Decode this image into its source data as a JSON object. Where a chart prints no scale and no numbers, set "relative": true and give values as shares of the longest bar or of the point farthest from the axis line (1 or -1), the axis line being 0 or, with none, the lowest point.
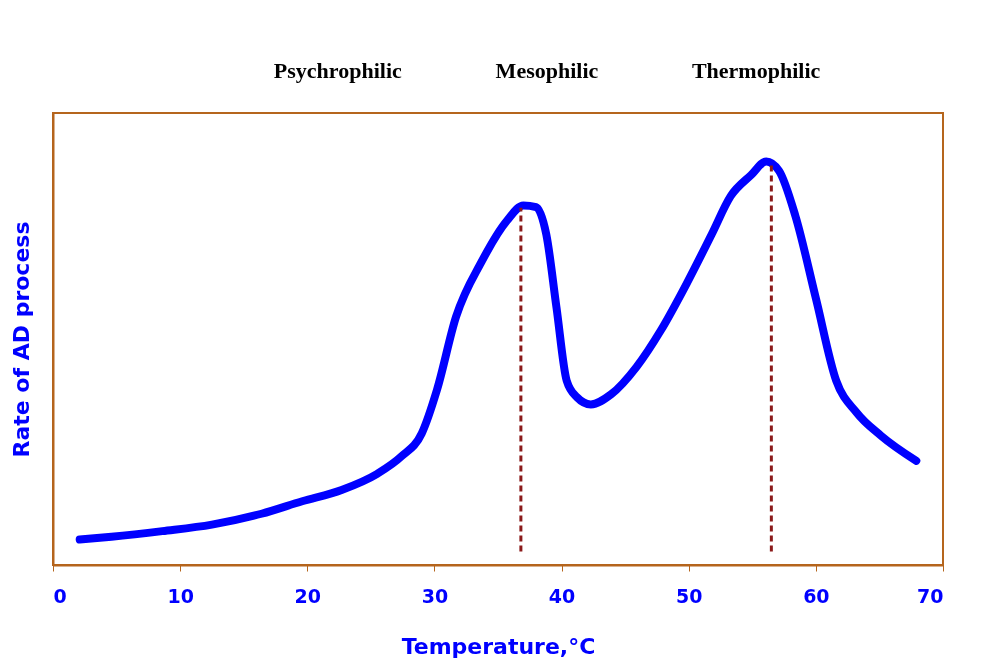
{
  "chart_data": {
    "type": "line",
    "relative": true,
    "xlabel": "Temperature,°C",
    "ylabel": "Rate of AD process",
    "xlim": [
      0,
      70
    ],
    "xticks": [
      0,
      10,
      20,
      30,
      40,
      50,
      60,
      70
    ],
    "tick_labels": "x",
    "grid": false,
    "marker": "none",
    "line_style": "solid",
    "x": [
      2.1,
      4.6,
      8.6,
      12.5,
      16.4,
      19.6,
      22.7,
      25.5,
      27.4,
      29.0,
      30.2,
      31.7,
      33.7,
      35.7,
      37.0,
      38.0,
      38.8,
      39.6,
      40.4,
      41.2,
      42.3,
      43.9,
      45.9,
      47.8,
      49.8,
      51.8,
      53.3,
      54.9,
      56.1,
      57.1,
      58.4,
      60.0,
      61.6,
      63.2,
      65.1,
      67.9
    ],
    "series": [
      {
        "color": "#0000ff",
        "values": [
          0.063,
          0.07,
          0.084,
          0.1,
          0.127,
          0.158,
          0.186,
          0.226,
          0.269,
          0.326,
          0.434,
          0.615,
          0.751,
          0.853,
          0.891,
          0.887,
          0.819,
          0.638,
          0.457,
          0.416,
          0.398,
          0.423,
          0.491,
          0.581,
          0.695,
          0.819,
          0.914,
          0.966,
          1.0,
          0.977,
          0.864,
          0.661,
          0.457,
          0.378,
          0.321,
          0.258
        ]
      }
    ],
    "ref_lines": [
      {
        "axis": "x",
        "value": 36.8,
        "color": "#8b1a1a",
        "line_style": "dashed"
      },
      {
        "axis": "x",
        "value": 56.5,
        "color": "#8b1a1a",
        "line_style": "dashed"
      }
    ],
    "annotations": [
      "Psychrophilic",
      "Mesophilic",
      "Thermophilic"
    ]
  }
}
